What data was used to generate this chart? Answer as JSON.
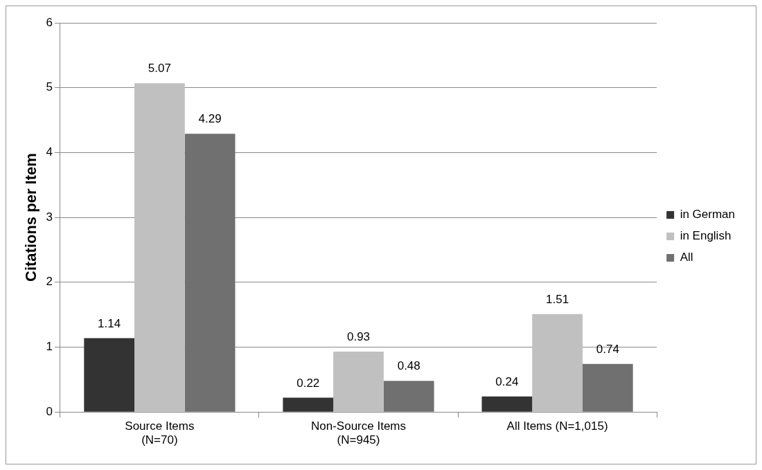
{
  "chart_data": {
    "type": "bar",
    "ylabel": "Citations per Item",
    "categories": [
      "Source Items\n(N=70)",
      "Non-Source Items\n(N=945)",
      "All Items (N=1,015)"
    ],
    "series": [
      {
        "name": "in German",
        "color": "#333333",
        "values": [
          1.14,
          0.22,
          0.24
        ]
      },
      {
        "name": "in English",
        "color": "#c0c0c0",
        "values": [
          5.07,
          0.93,
          1.51
        ]
      },
      {
        "name": "All",
        "color": "#707070",
        "values": [
          4.29,
          0.48,
          0.74
        ]
      }
    ],
    "ylim": [
      0,
      6
    ],
    "yticks": [
      0,
      1,
      2,
      3,
      4,
      5,
      6
    ],
    "grid": "y",
    "legend": "right",
    "data_labels": true
  }
}
